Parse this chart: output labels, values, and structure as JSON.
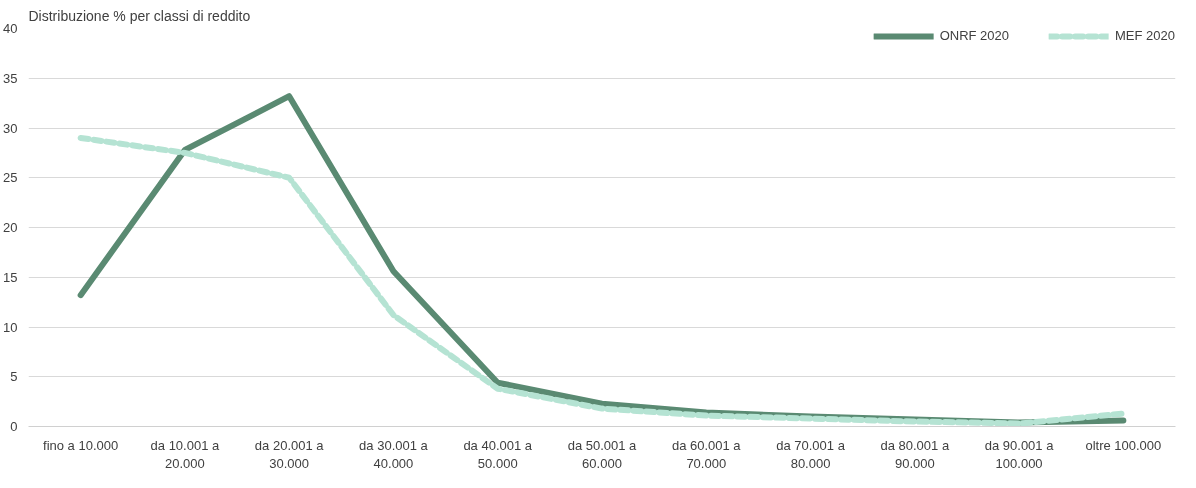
{
  "chart_data": {
    "type": "line",
    "title": "Distribuzione % per classi di reddito",
    "categories": [
      "fino a 10.000",
      "da 10.001 a 20.000",
      "da 20.001 a 30.000",
      "da 30.001 a 40.000",
      "da 40.001 a 50.000",
      "da 50.001 a 60.000",
      "da 60.001 a 70.000",
      "da 70.001 a 80.000",
      "da 80.001 a 90.000",
      "da 90.001 a 100.000",
      "oltre 100.000"
    ],
    "series": [
      {
        "name": "ONRF 2020",
        "color": "#5a8a72",
        "line_style": "solid",
        "values": [
          13.2,
          27.8,
          33.2,
          15.6,
          4.4,
          2.3,
          1.4,
          1.0,
          0.7,
          0.4,
          0.6
        ]
      },
      {
        "name": "MEF 2020",
        "color": "#b5e3d3",
        "line_style": "dashed",
        "values": [
          29.0,
          27.5,
          25.0,
          11.2,
          3.8,
          1.8,
          1.1,
          0.8,
          0.5,
          0.3,
          1.3
        ]
      }
    ],
    "ylim": [
      0,
      40
    ],
    "yticks": [
      0,
      5,
      10,
      15,
      20,
      25,
      30,
      35,
      40
    ],
    "grid": "y",
    "legend": "top right",
    "marker": "none"
  }
}
